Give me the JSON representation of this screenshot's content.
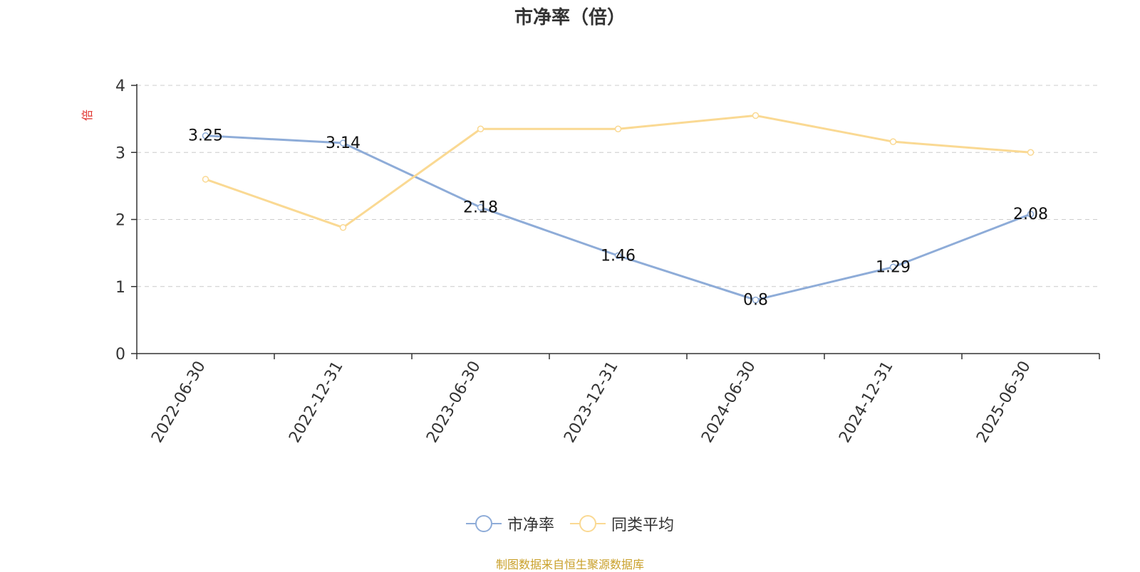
{
  "chart_data": {
    "type": "line",
    "title": "市净率（倍）",
    "ylabel": "倍",
    "categories": [
      "2022-06-30",
      "2022-12-31",
      "2023-06-30",
      "2023-12-31",
      "2024-06-30",
      "2024-12-31",
      "2025-06-30"
    ],
    "ylim": [
      0,
      4
    ],
    "yticks": [
      0,
      1,
      2,
      3,
      4
    ],
    "grid": true,
    "legend_position": "bottom",
    "series": [
      {
        "name": "市净率",
        "values": [
          3.25,
          3.14,
          2.18,
          1.46,
          0.8,
          1.29,
          2.08
        ],
        "labels": [
          "3.25",
          "3.14",
          "2.18",
          "1.46",
          "0.8",
          "1.29",
          "2.08"
        ],
        "color": "#8EACD8"
      },
      {
        "name": "同类平均",
        "values": [
          2.6,
          1.88,
          3.35,
          3.35,
          3.55,
          3.16,
          3.0
        ],
        "color": "#FAD993"
      }
    ]
  },
  "source_note": "制图数据来自恒生聚源数据库",
  "colors": {
    "source_note": "#C9A02A",
    "ylabel": "#E0312B",
    "axis": "#333333",
    "grid": "#CCCCCC"
  }
}
